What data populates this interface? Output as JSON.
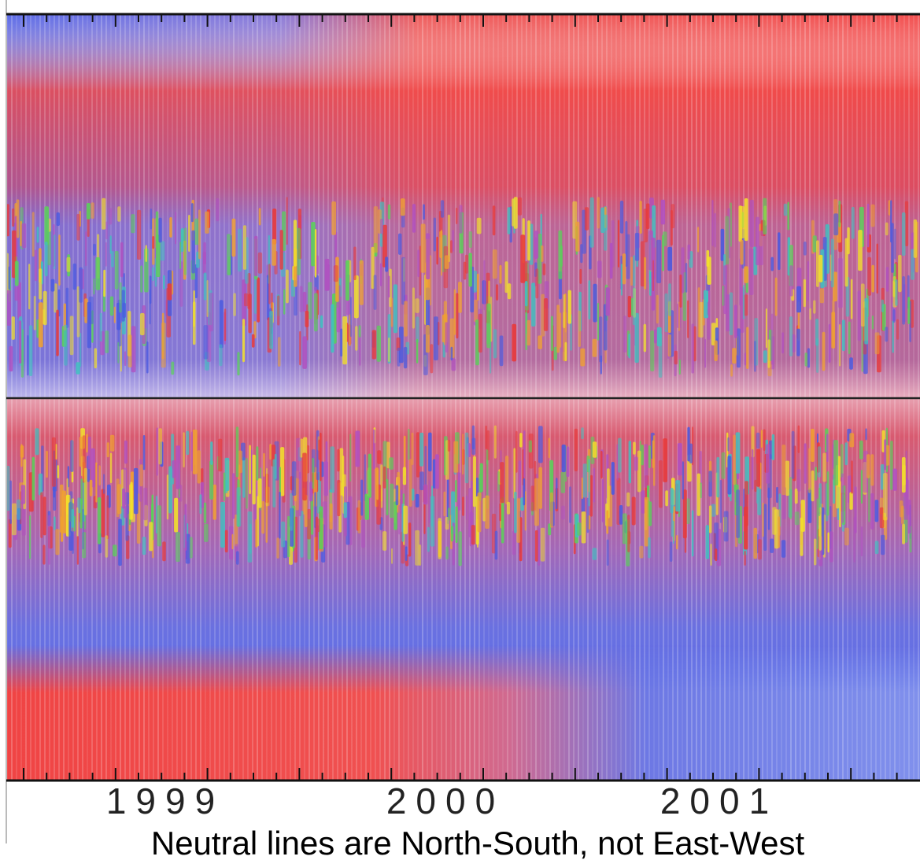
{
  "figure": {
    "x_labels": [
      "1999",
      "2000",
      "2001"
    ],
    "caption": "Neutral lines are North-South, not East-West"
  }
}
